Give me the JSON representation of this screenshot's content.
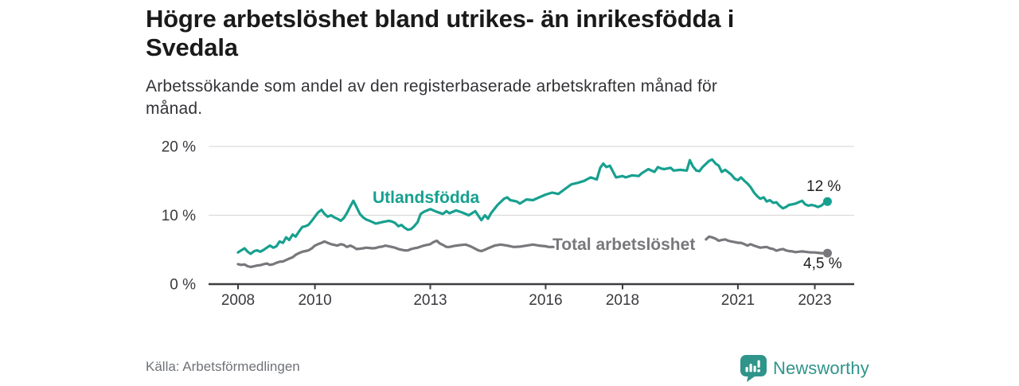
{
  "header": {
    "title": "Högre arbetslöshet bland utrikes- än inrikesfödda i\nSvedala",
    "subtitle": "Arbetssökande som andel av den registerbaserade arbetskraften månad för\nmånad."
  },
  "footer": {
    "source": "Källa: Arbetsförmedlingen",
    "brand": "Newsworthy"
  },
  "colors": {
    "teal": "#17A08F",
    "gray": "#78787C",
    "brand_teal": "#2F948A",
    "grid": "#dcdcdc",
    "axis": "#3c3c40",
    "axis_text": "#3a3a3e",
    "title_text": "#1a1a1a"
  },
  "chart_data": {
    "type": "line",
    "unit": "%",
    "x_axis": {
      "ticks": [
        2008,
        2010,
        2013,
        2016,
        2018,
        2021,
        2023
      ],
      "tick_labels": [
        "2008",
        "2010",
        "2013",
        "2016",
        "2018",
        "2021",
        "2023"
      ],
      "range": [
        2007.24,
        2024.02
      ]
    },
    "y_axis": {
      "ticks": [
        0,
        10,
        20
      ],
      "tick_labels": [
        "0 %",
        "10 %",
        "20 %"
      ],
      "range": [
        0,
        21
      ],
      "gridlines": [
        10,
        20
      ]
    },
    "series": [
      {
        "name": "Utlandsfödda",
        "color": "#17A08F",
        "end_value": 12,
        "end_label": "12 %",
        "points": [
          [
            2008.0,
            4.6
          ],
          [
            2008.08,
            4.9
          ],
          [
            2008.17,
            5.2
          ],
          [
            2008.25,
            4.7
          ],
          [
            2008.33,
            4.4
          ],
          [
            2008.42,
            4.8
          ],
          [
            2008.5,
            4.9
          ],
          [
            2008.58,
            4.7
          ],
          [
            2008.67,
            5.0
          ],
          [
            2008.75,
            5.3
          ],
          [
            2008.83,
            5.6
          ],
          [
            2008.92,
            5.3
          ],
          [
            2009.0,
            5.5
          ],
          [
            2009.08,
            6.2
          ],
          [
            2009.17,
            6.0
          ],
          [
            2009.25,
            6.8
          ],
          [
            2009.33,
            6.4
          ],
          [
            2009.42,
            7.2
          ],
          [
            2009.5,
            6.9
          ],
          [
            2009.58,
            7.6
          ],
          [
            2009.67,
            8.3
          ],
          [
            2009.75,
            8.4
          ],
          [
            2009.83,
            8.6
          ],
          [
            2009.92,
            9.2
          ],
          [
            2010.0,
            9.8
          ],
          [
            2010.08,
            10.4
          ],
          [
            2010.17,
            10.8
          ],
          [
            2010.25,
            10.2
          ],
          [
            2010.33,
            9.8
          ],
          [
            2010.42,
            10.0
          ],
          [
            2010.5,
            9.7
          ],
          [
            2010.58,
            9.5
          ],
          [
            2010.67,
            9.2
          ],
          [
            2010.75,
            9.6
          ],
          [
            2010.83,
            10.3
          ],
          [
            2010.92,
            11.3
          ],
          [
            2011.0,
            12.1
          ],
          [
            2011.08,
            11.2
          ],
          [
            2011.17,
            10.2
          ],
          [
            2011.25,
            9.7
          ],
          [
            2011.33,
            9.4
          ],
          [
            2011.42,
            9.2
          ],
          [
            2011.5,
            9.0
          ],
          [
            2011.58,
            8.8
          ],
          [
            2011.67,
            8.9
          ],
          [
            2011.75,
            9.0
          ],
          [
            2011.83,
            9.1
          ],
          [
            2011.92,
            9.2
          ],
          [
            2012.0,
            9.1
          ],
          [
            2012.08,
            8.9
          ],
          [
            2012.17,
            8.4
          ],
          [
            2012.25,
            8.6
          ],
          [
            2012.33,
            8.2
          ],
          [
            2012.42,
            7.9
          ],
          [
            2012.5,
            8.0
          ],
          [
            2012.58,
            8.4
          ],
          [
            2012.67,
            9.0
          ],
          [
            2012.75,
            10.2
          ],
          [
            2012.83,
            10.5
          ],
          [
            2012.92,
            10.7
          ],
          [
            2013.0,
            10.9
          ],
          [
            2013.17,
            10.5
          ],
          [
            2013.33,
            10.2
          ],
          [
            2013.42,
            10.6
          ],
          [
            2013.5,
            10.3
          ],
          [
            2013.67,
            10.7
          ],
          [
            2013.83,
            10.4
          ],
          [
            2014.0,
            10.0
          ],
          [
            2014.17,
            10.6
          ],
          [
            2014.33,
            9.3
          ],
          [
            2014.42,
            10.0
          ],
          [
            2014.5,
            9.5
          ],
          [
            2014.58,
            10.3
          ],
          [
            2014.75,
            11.5
          ],
          [
            2014.92,
            12.4
          ],
          [
            2015.0,
            12.6
          ],
          [
            2015.08,
            12.2
          ],
          [
            2015.25,
            12.0
          ],
          [
            2015.33,
            11.7
          ],
          [
            2015.5,
            12.3
          ],
          [
            2015.67,
            12.2
          ],
          [
            2015.83,
            12.6
          ],
          [
            2016.0,
            13.0
          ],
          [
            2016.17,
            13.3
          ],
          [
            2016.33,
            13.1
          ],
          [
            2016.5,
            13.8
          ],
          [
            2016.67,
            14.5
          ],
          [
            2016.83,
            14.7
          ],
          [
            2017.0,
            15.0
          ],
          [
            2017.17,
            15.5
          ],
          [
            2017.33,
            15.2
          ],
          [
            2017.42,
            16.9
          ],
          [
            2017.5,
            17.5
          ],
          [
            2017.58,
            17.0
          ],
          [
            2017.67,
            17.2
          ],
          [
            2017.83,
            15.5
          ],
          [
            2018.0,
            15.7
          ],
          [
            2018.08,
            15.5
          ],
          [
            2018.25,
            15.8
          ],
          [
            2018.42,
            15.7
          ],
          [
            2018.5,
            16.1
          ],
          [
            2018.67,
            16.7
          ],
          [
            2018.83,
            16.3
          ],
          [
            2018.92,
            17.0
          ],
          [
            2019.0,
            16.8
          ],
          [
            2019.08,
            16.7
          ],
          [
            2019.25,
            16.9
          ],
          [
            2019.33,
            16.5
          ],
          [
            2019.5,
            16.6
          ],
          [
            2019.67,
            16.5
          ],
          [
            2019.75,
            18.0
          ],
          [
            2019.83,
            17.1
          ],
          [
            2019.92,
            16.5
          ],
          [
            2020.0,
            16.4
          ],
          [
            2020.08,
            17.0
          ],
          [
            2020.25,
            17.9
          ],
          [
            2020.33,
            18.1
          ],
          [
            2020.42,
            17.5
          ],
          [
            2020.5,
            17.2
          ],
          [
            2020.58,
            16.3
          ],
          [
            2020.67,
            16.6
          ],
          [
            2020.83,
            15.9
          ],
          [
            2020.92,
            15.3
          ],
          [
            2021.0,
            15.1
          ],
          [
            2021.08,
            15.5
          ],
          [
            2021.17,
            15.0
          ],
          [
            2021.25,
            14.6
          ],
          [
            2021.33,
            14.1
          ],
          [
            2021.42,
            13.3
          ],
          [
            2021.5,
            12.8
          ],
          [
            2021.58,
            12.4
          ],
          [
            2021.67,
            12.6
          ],
          [
            2021.75,
            12.0
          ],
          [
            2021.83,
            12.2
          ],
          [
            2021.92,
            11.8
          ],
          [
            2022.0,
            11.9
          ],
          [
            2022.08,
            11.4
          ],
          [
            2022.17,
            11.0
          ],
          [
            2022.25,
            11.2
          ],
          [
            2022.33,
            11.5
          ],
          [
            2022.42,
            11.6
          ],
          [
            2022.5,
            11.7
          ],
          [
            2022.58,
            11.9
          ],
          [
            2022.67,
            12.1
          ],
          [
            2022.75,
            11.6
          ],
          [
            2022.83,
            11.4
          ],
          [
            2022.92,
            11.5
          ],
          [
            2023.0,
            11.4
          ],
          [
            2023.08,
            11.2
          ],
          [
            2023.17,
            11.4
          ],
          [
            2023.25,
            11.8
          ],
          [
            2023.33,
            12.0
          ]
        ]
      },
      {
        "name": "Total arbetslöshet",
        "color": "#78787C",
        "end_value": 4.5,
        "end_label": "4,5 %",
        "label_gap_x": [
          2016.25,
          2020.15
        ],
        "points": [
          [
            2008.0,
            2.9
          ],
          [
            2008.08,
            2.8
          ],
          [
            2008.17,
            2.85
          ],
          [
            2008.25,
            2.6
          ],
          [
            2008.33,
            2.5
          ],
          [
            2008.42,
            2.6
          ],
          [
            2008.5,
            2.7
          ],
          [
            2008.58,
            2.75
          ],
          [
            2008.67,
            2.9
          ],
          [
            2008.75,
            3.0
          ],
          [
            2008.83,
            2.8
          ],
          [
            2008.92,
            2.9
          ],
          [
            2009.0,
            3.1
          ],
          [
            2009.08,
            3.25
          ],
          [
            2009.17,
            3.3
          ],
          [
            2009.25,
            3.5
          ],
          [
            2009.33,
            3.7
          ],
          [
            2009.42,
            3.9
          ],
          [
            2009.5,
            4.25
          ],
          [
            2009.58,
            4.5
          ],
          [
            2009.67,
            4.7
          ],
          [
            2009.75,
            4.8
          ],
          [
            2009.83,
            4.9
          ],
          [
            2009.92,
            5.2
          ],
          [
            2010.0,
            5.6
          ],
          [
            2010.08,
            5.8
          ],
          [
            2010.17,
            6.0
          ],
          [
            2010.25,
            6.2
          ],
          [
            2010.33,
            6.0
          ],
          [
            2010.42,
            5.8
          ],
          [
            2010.5,
            5.7
          ],
          [
            2010.58,
            5.6
          ],
          [
            2010.67,
            5.8
          ],
          [
            2010.75,
            5.7
          ],
          [
            2010.83,
            5.4
          ],
          [
            2010.92,
            5.6
          ],
          [
            2011.0,
            5.4
          ],
          [
            2011.08,
            5.1
          ],
          [
            2011.17,
            5.15
          ],
          [
            2011.25,
            5.2
          ],
          [
            2011.33,
            5.3
          ],
          [
            2011.42,
            5.25
          ],
          [
            2011.5,
            5.2
          ],
          [
            2011.58,
            5.25
          ],
          [
            2011.67,
            5.4
          ],
          [
            2011.75,
            5.45
          ],
          [
            2011.83,
            5.6
          ],
          [
            2011.92,
            5.5
          ],
          [
            2012.0,
            5.4
          ],
          [
            2012.08,
            5.3
          ],
          [
            2012.17,
            5.1
          ],
          [
            2012.25,
            5.0
          ],
          [
            2012.33,
            4.9
          ],
          [
            2012.42,
            4.9
          ],
          [
            2012.5,
            5.1
          ],
          [
            2012.58,
            5.2
          ],
          [
            2012.67,
            5.3
          ],
          [
            2012.75,
            5.45
          ],
          [
            2012.83,
            5.6
          ],
          [
            2012.92,
            5.7
          ],
          [
            2013.0,
            5.8
          ],
          [
            2013.08,
            6.1
          ],
          [
            2013.17,
            6.3
          ],
          [
            2013.25,
            5.9
          ],
          [
            2013.33,
            5.7
          ],
          [
            2013.42,
            5.4
          ],
          [
            2013.5,
            5.4
          ],
          [
            2013.58,
            5.5
          ],
          [
            2013.67,
            5.6
          ],
          [
            2013.83,
            5.7
          ],
          [
            2013.92,
            5.75
          ],
          [
            2014.0,
            5.6
          ],
          [
            2014.08,
            5.4
          ],
          [
            2014.25,
            4.9
          ],
          [
            2014.33,
            4.8
          ],
          [
            2014.42,
            5.0
          ],
          [
            2014.5,
            5.2
          ],
          [
            2014.67,
            5.6
          ],
          [
            2014.83,
            5.75
          ],
          [
            2015.0,
            5.6
          ],
          [
            2015.17,
            5.4
          ],
          [
            2015.33,
            5.45
          ],
          [
            2015.5,
            5.6
          ],
          [
            2015.67,
            5.75
          ],
          [
            2015.83,
            5.6
          ],
          [
            2016.0,
            5.5
          ],
          [
            2016.08,
            5.4
          ],
          [
            2016.2,
            5.4
          ],
          [
            2016.33,
            5.5
          ],
          [
            2016.5,
            5.45
          ],
          [
            2016.75,
            5.5
          ],
          [
            2017.0,
            5.5
          ],
          [
            2017.25,
            5.55
          ],
          [
            2017.5,
            5.5
          ],
          [
            2017.75,
            5.45
          ],
          [
            2018.0,
            5.4
          ],
          [
            2018.25,
            5.45
          ],
          [
            2018.5,
            5.5
          ],
          [
            2018.75,
            5.45
          ],
          [
            2019.0,
            5.5
          ],
          [
            2019.25,
            5.55
          ],
          [
            2019.5,
            5.6
          ],
          [
            2019.75,
            5.8
          ],
          [
            2020.0,
            6.1
          ],
          [
            2020.17,
            6.5
          ],
          [
            2020.25,
            6.9
          ],
          [
            2020.33,
            6.8
          ],
          [
            2020.42,
            6.6
          ],
          [
            2020.5,
            6.3
          ],
          [
            2020.58,
            6.4
          ],
          [
            2020.67,
            6.5
          ],
          [
            2020.75,
            6.3
          ],
          [
            2020.83,
            6.2
          ],
          [
            2020.92,
            6.1
          ],
          [
            2021.0,
            6.0
          ],
          [
            2021.08,
            6.0
          ],
          [
            2021.17,
            5.8
          ],
          [
            2021.25,
            5.6
          ],
          [
            2021.33,
            5.8
          ],
          [
            2021.42,
            5.6
          ],
          [
            2021.5,
            5.45
          ],
          [
            2021.58,
            5.3
          ],
          [
            2021.67,
            5.35
          ],
          [
            2021.75,
            5.4
          ],
          [
            2021.83,
            5.2
          ],
          [
            2021.92,
            5.1
          ],
          [
            2022.0,
            4.85
          ],
          [
            2022.08,
            5.0
          ],
          [
            2022.17,
            5.1
          ],
          [
            2022.25,
            4.9
          ],
          [
            2022.33,
            4.8
          ],
          [
            2022.42,
            4.75
          ],
          [
            2022.5,
            4.65
          ],
          [
            2022.58,
            4.7
          ],
          [
            2022.67,
            4.75
          ],
          [
            2022.75,
            4.7
          ],
          [
            2022.83,
            4.65
          ],
          [
            2022.92,
            4.6
          ],
          [
            2023.0,
            4.6
          ],
          [
            2023.08,
            4.55
          ],
          [
            2023.17,
            4.5
          ],
          [
            2023.25,
            4.5
          ],
          [
            2023.33,
            4.5
          ]
        ]
      }
    ]
  }
}
